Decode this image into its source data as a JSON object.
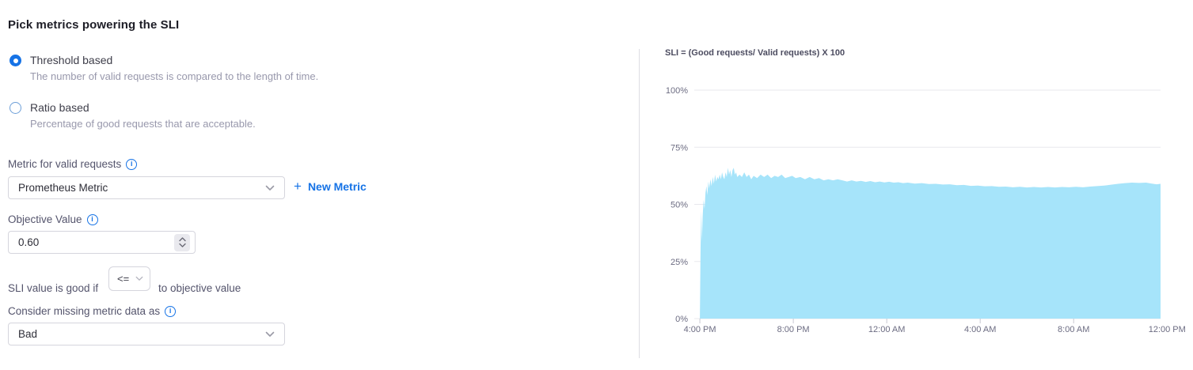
{
  "page": {
    "title": "Pick metrics powering the SLI"
  },
  "sli_type": {
    "options": [
      {
        "label": "Threshold based",
        "description": "The number of valid requests is compared to the length of time.",
        "selected": true
      },
      {
        "label": "Ratio based",
        "description": "Percentage of good requests that are acceptable.",
        "selected": false
      }
    ]
  },
  "metric_section": {
    "label": "Metric for valid requests",
    "select_value": "Prometheus Metric",
    "plus": "+",
    "new_metric_label": "New Metric"
  },
  "objective": {
    "label": "Objective Value",
    "value": "0.60"
  },
  "comparator": {
    "prefix": "SLI value is good if",
    "value": "<=",
    "suffix": "to objective value"
  },
  "missing_data": {
    "label": "Consider missing metric data as",
    "value": "Bad"
  },
  "icons": {
    "info_glyph": "i"
  },
  "colors": {
    "accent": "#1673e6",
    "area_fill": "#a6e4fa",
    "grid": "#e8e8ed",
    "axis_text": "#6c6c82",
    "divider": "#dddde3"
  },
  "chart_data": {
    "type": "area",
    "title": "SLI = (Good requests/ Valid requests) X 100",
    "xlabel": "",
    "ylabel": "",
    "grid": "horizontal",
    "legend": "none",
    "x_unit": "hour (16 = 4:00 PM, 24 = 12:00 AM next day, 36 = 12:00 PM next day)",
    "xlim": [
      15.76,
      35.72
    ],
    "ylim": [
      0,
      100
    ],
    "x_ticks": [
      {
        "hour": 16,
        "label": "4:00 PM"
      },
      {
        "hour": 20,
        "label": "8:00 PM"
      },
      {
        "hour": 24,
        "label": "12:00 AM"
      },
      {
        "hour": 28,
        "label": "4:00 AM"
      },
      {
        "hour": 32,
        "label": "8:00 AM"
      },
      {
        "hour": 36,
        "label": "12:00 PM"
      }
    ],
    "y_ticks": [
      {
        "value": 0,
        "label": "0%"
      },
      {
        "value": 25,
        "label": "25%"
      },
      {
        "value": 50,
        "label": "50%"
      },
      {
        "value": 75,
        "label": "75%"
      },
      {
        "value": 100,
        "label": "100%"
      }
    ],
    "points": [
      [
        16,
        0
      ],
      [
        16.03,
        31
      ],
      [
        16.06,
        47
      ],
      [
        16.09,
        34
      ],
      [
        16.12,
        45
      ],
      [
        16.16,
        52
      ],
      [
        16.2,
        48
      ],
      [
        16.24,
        55
      ],
      [
        16.28,
        58
      ],
      [
        16.32,
        54
      ],
      [
        16.36,
        60
      ],
      [
        16.4,
        57
      ],
      [
        16.45,
        61
      ],
      [
        16.5,
        58
      ],
      [
        16.55,
        62
      ],
      [
        16.6,
        59
      ],
      [
        16.65,
        63
      ],
      [
        16.7,
        60
      ],
      [
        16.75,
        62
      ],
      [
        16.8,
        61
      ],
      [
        16.85,
        63
      ],
      [
        16.9,
        61
      ],
      [
        16.95,
        64
      ],
      [
        17,
        62
      ],
      [
        17.05,
        61
      ],
      [
        17.1,
        64
      ],
      [
        17.15,
        62
      ],
      [
        17.2,
        66
      ],
      [
        17.25,
        63
      ],
      [
        17.3,
        65
      ],
      [
        17.35,
        62
      ],
      [
        17.4,
        65
      ],
      [
        17.45,
        66
      ],
      [
        17.5,
        63
      ],
      [
        17.55,
        64
      ],
      [
        17.6,
        62
      ],
      [
        17.7,
        63
      ],
      [
        17.8,
        62
      ],
      [
        17.9,
        64
      ],
      [
        18,
        62
      ],
      [
        18.1,
        63
      ],
      [
        18.2,
        61
      ],
      [
        18.3,
        62.5
      ],
      [
        18.45,
        61.5
      ],
      [
        18.6,
        63
      ],
      [
        18.75,
        62
      ],
      [
        18.9,
        63
      ],
      [
        19.05,
        61.5
      ],
      [
        19.2,
        62.5
      ],
      [
        19.35,
        62
      ],
      [
        19.5,
        63
      ],
      [
        19.65,
        61.5
      ],
      [
        19.8,
        62
      ],
      [
        19.95,
        62.5
      ],
      [
        20.1,
        61.5
      ],
      [
        20.3,
        62
      ],
      [
        20.5,
        61
      ],
      [
        20.7,
        62
      ],
      [
        20.9,
        61
      ],
      [
        21.1,
        61.5
      ],
      [
        21.3,
        60.5
      ],
      [
        21.5,
        61
      ],
      [
        21.7,
        60.5
      ],
      [
        21.9,
        61
      ],
      [
        22.1,
        60.5
      ],
      [
        22.3,
        60
      ],
      [
        22.5,
        60.5
      ],
      [
        22.7,
        60
      ],
      [
        22.9,
        60.3
      ],
      [
        23.1,
        59.8
      ],
      [
        23.3,
        60.2
      ],
      [
        23.5,
        59.7
      ],
      [
        23.7,
        60
      ],
      [
        23.9,
        59.6
      ],
      [
        24.1,
        59.9
      ],
      [
        24.3,
        59.5
      ],
      [
        24.5,
        59.7
      ],
      [
        24.7,
        59.3
      ],
      [
        24.9,
        59.5
      ],
      [
        25.2,
        59.1
      ],
      [
        25.5,
        59.3
      ],
      [
        25.8,
        58.9
      ],
      [
        26.1,
        59
      ],
      [
        26.4,
        58.7
      ],
      [
        26.7,
        58.8
      ],
      [
        27,
        58.4
      ],
      [
        27.3,
        58.5
      ],
      [
        27.6,
        58.1
      ],
      [
        27.9,
        58.2
      ],
      [
        28.2,
        57.9
      ],
      [
        28.5,
        58
      ],
      [
        28.8,
        57.7
      ],
      [
        29.1,
        57.8
      ],
      [
        29.4,
        57.5
      ],
      [
        29.7,
        57.7
      ],
      [
        30,
        57.4
      ],
      [
        30.3,
        57.6
      ],
      [
        30.6,
        57.4
      ],
      [
        30.9,
        57.6
      ],
      [
        31.2,
        57.4
      ],
      [
        31.5,
        57.6
      ],
      [
        31.8,
        57.5
      ],
      [
        32.1,
        57.7
      ],
      [
        32.4,
        57.5
      ],
      [
        32.7,
        57.8
      ],
      [
        33,
        58
      ],
      [
        33.3,
        58.2
      ],
      [
        33.6,
        58.6
      ],
      [
        33.9,
        59
      ],
      [
        34.2,
        59.3
      ],
      [
        34.5,
        59.5
      ],
      [
        34.8,
        59.4
      ],
      [
        35.1,
        59.5
      ],
      [
        35.35,
        59.1
      ],
      [
        35.55,
        58.8
      ],
      [
        35.72,
        59
      ]
    ]
  }
}
